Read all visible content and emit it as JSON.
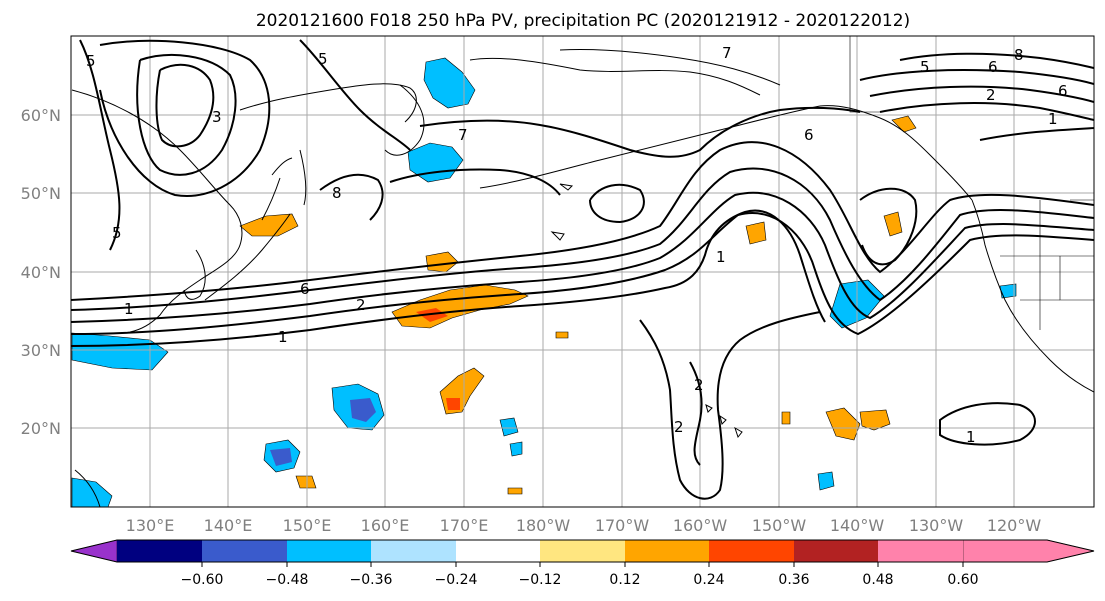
{
  "title": "2020121600 F018 250 hPa PV, precipitation PC (2020121912 - 2020122012)",
  "lat_labels": [
    "60°N",
    "50°N",
    "40°N",
    "30°N",
    "20°N"
  ],
  "lon_labels": [
    "130°E",
    "140°E",
    "150°E",
    "160°E",
    "170°E",
    "180°W",
    "170°W",
    "160°W",
    "150°W",
    "140°W",
    "130°W",
    "120°W"
  ],
  "colorbar": {
    "colors": [
      "#9932cc",
      "#000080",
      "#3a5bcc",
      "#00bfff",
      "#aee3ff",
      "#ffffff",
      "#ffe680",
      "#ffa500",
      "#ff4500",
      "#b22222",
      "#ff82ab"
    ],
    "tick_labels": [
      "−0.60",
      "−0.48",
      "−0.36",
      "−0.24",
      "−0.12",
      "0.12",
      "0.24",
      "0.36",
      "0.48",
      "0.60"
    ]
  },
  "pv_contour_labels": [
    "5",
    "3",
    "5",
    "7",
    "6",
    "8",
    "5",
    "2",
    "1",
    "1",
    "7",
    "6",
    "6",
    "1",
    "2",
    "2",
    "5",
    "2",
    "6",
    "1",
    "8",
    "1"
  ]
}
